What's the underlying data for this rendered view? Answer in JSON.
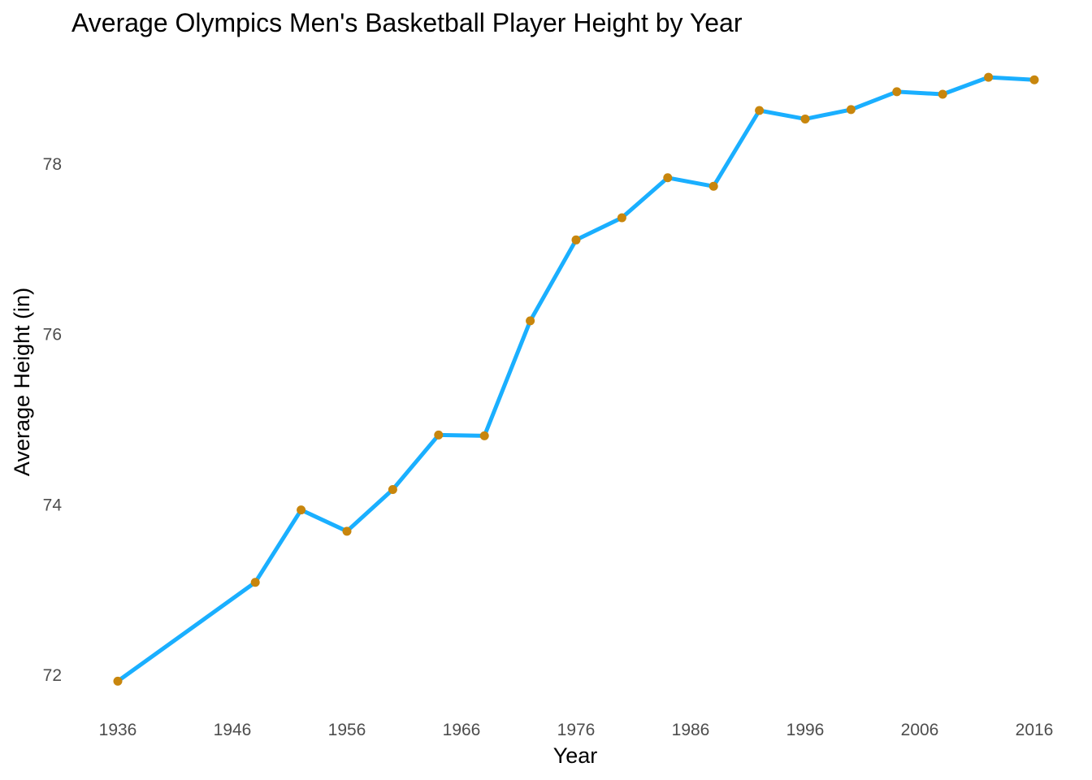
{
  "chart_data": {
    "type": "line",
    "title": "Average Olympics Men's Basketball Player Height by Year",
    "xlabel": "Year",
    "ylabel": "Average Height (in)",
    "x_ticks": [
      1936,
      1946,
      1956,
      1966,
      1976,
      1986,
      1996,
      2006,
      2016
    ],
    "y_ticks": [
      72,
      74,
      76,
      78
    ],
    "xlim": [
      1934,
      2017
    ],
    "ylim": [
      71.7,
      79.3
    ],
    "grid": false,
    "legend": "none",
    "line_color": "#1aafff",
    "point_color": "#c8860d",
    "x": [
      1936,
      1948,
      1952,
      1956,
      1960,
      1964,
      1968,
      1972,
      1976,
      1980,
      1984,
      1988,
      1992,
      1996,
      2000,
      2004,
      2008,
      2012,
      2016
    ],
    "y": [
      71.93,
      73.09,
      73.94,
      73.69,
      74.18,
      74.82,
      74.81,
      76.16,
      77.11,
      77.37,
      77.84,
      77.74,
      78.63,
      78.53,
      78.64,
      78.85,
      78.82,
      79.02,
      78.99
    ]
  }
}
